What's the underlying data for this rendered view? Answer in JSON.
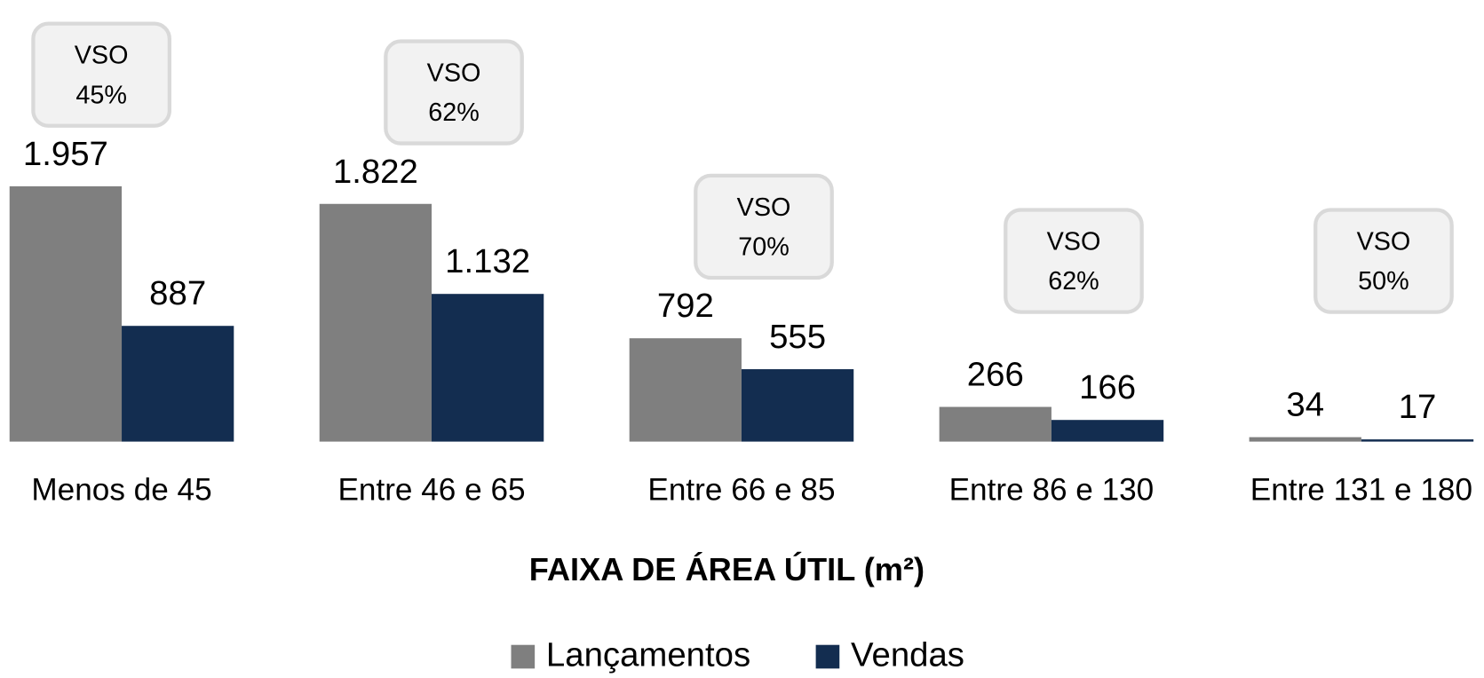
{
  "chart_data": {
    "type": "bar",
    "x_label": "FAIXA DE ÁREA ÚTIL (m²)",
    "categories": [
      "Menos de 45",
      "Entre 46 e 65",
      "Entre 66 e 85",
      "Entre 86 e 130",
      "Entre 131 e 180"
    ],
    "series": [
      {
        "name": "Lançamentos",
        "color": "#7f7f7f",
        "values": [
          1957,
          1822,
          792,
          266,
          34
        ],
        "value_labels": [
          "1.957",
          "1.822",
          "792",
          "266",
          "34"
        ]
      },
      {
        "name": "Vendas",
        "color": "#132d50",
        "values": [
          887,
          1132,
          555,
          166,
          17
        ],
        "value_labels": [
          "887",
          "1.132",
          "555",
          "166",
          "17"
        ]
      }
    ],
    "annotations": [
      [
        "VSO",
        "45%"
      ],
      [
        "VSO",
        "62%"
      ],
      [
        "VSO",
        "70%"
      ],
      [
        "VSO",
        "62%"
      ],
      [
        "VSO",
        "50%"
      ]
    ],
    "legend": "bottom"
  }
}
